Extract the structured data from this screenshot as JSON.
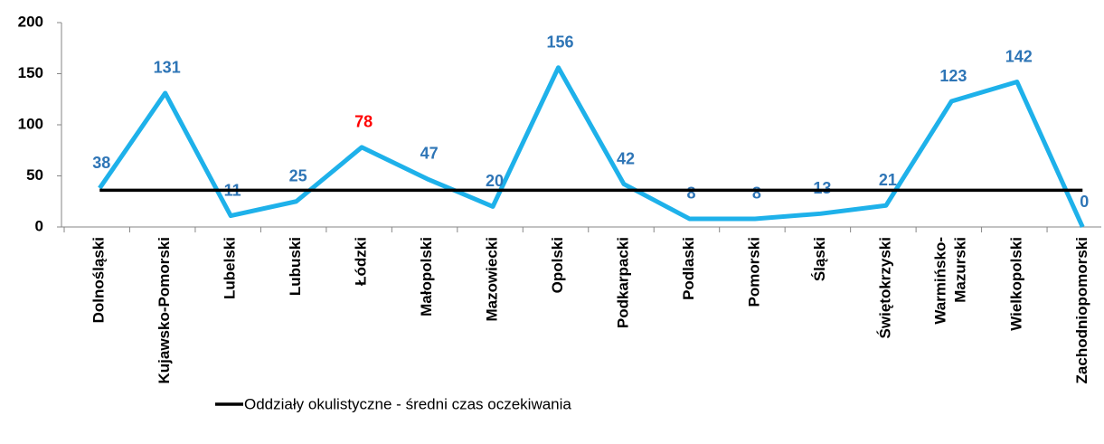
{
  "chart_data": {
    "type": "line",
    "categories": [
      "Dolnośląski",
      "Kujawsko-Pomorski",
      "Lubelski",
      "Lubuski",
      "Łódzki",
      "Małopolski",
      "Mazowiecki",
      "Opolski",
      "Podkarpacki",
      "Podlaski",
      "Pomorski",
      "Śląski",
      "Świętokrzyski",
      "Warmińsko-\nMazurski",
      "Wielkopolski",
      "Zachodniopomorski"
    ],
    "series": [
      {
        "color": "#1eb1ea",
        "values": [
          38,
          131,
          11,
          25,
          78,
          47,
          20,
          156,
          42,
          8,
          8,
          13,
          21,
          123,
          142,
          0
        ],
        "label_colors": [
          "#2e75b6",
          "#2e75b6",
          "#2e75b6",
          "#2e75b6",
          "#ff0000",
          "#2e75b6",
          "#2e75b6",
          "#2e75b6",
          "#2e75b6",
          "#2e75b6",
          "#2e75b6",
          "#2e75b6",
          "#2e75b6",
          "#2e75b6",
          "#2e75b6",
          "#2e75b6"
        ]
      },
      {
        "name": "Oddziały okulistyczne - średni czas oczekiwania",
        "color": "#000000",
        "values": [
          36,
          36,
          36,
          36,
          36,
          36,
          36,
          36,
          36,
          36,
          36,
          36,
          36,
          36,
          36,
          36
        ]
      }
    ],
    "ylim": [
      0,
      200
    ],
    "yticks": [
      0,
      50,
      100,
      150,
      200
    ],
    "grid": false
  }
}
